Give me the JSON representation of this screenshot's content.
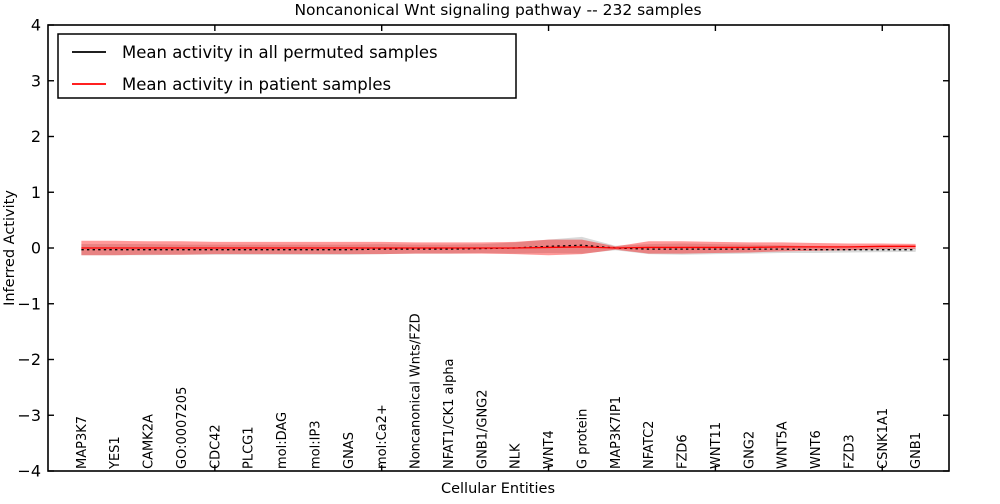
{
  "figure": {
    "title": "Noncanonical Wnt signaling pathway -- 232 samples",
    "xlabel": "Cellular Entities",
    "ylabel": "Inferred Activity"
  },
  "legend": {
    "position": "upper left",
    "items": [
      {
        "label": "Mean activity in all permuted samples",
        "color": "#000000"
      },
      {
        "label": "Mean activity in patient samples",
        "color": "#ff0000"
      }
    ]
  },
  "chart_data": {
    "type": "line",
    "title": "Noncanonical Wnt signaling pathway -- 232 samples",
    "xlabel": "Cellular Entities",
    "ylabel": "Inferred Activity",
    "ylim": [
      -4,
      4
    ],
    "xlim": [
      0,
      27
    ],
    "yticks": [
      4,
      3,
      2,
      1,
      0,
      -1,
      -2,
      -3,
      -4
    ],
    "ytick_labels": [
      "4",
      "3",
      "2",
      "1",
      "0",
      "−1",
      "−2",
      "−3",
      "−4"
    ],
    "default_xticks": [
      5,
      10,
      15,
      20,
      25
    ],
    "grid": false,
    "legend_position": "upper left",
    "categories": [
      "MAP3K7",
      "YES1",
      "CAMK2A",
      "GO:0007205",
      "CDC42",
      "PLCG1",
      "mol:DAG",
      "mol:IP3",
      "GNAS",
      "mol:Ca2+",
      "Noncanonical Wnts/FZD",
      "NFAT1/CK1 alpha",
      "GNB1/GNG2",
      "NLK",
      "WNT4",
      "G protein",
      "MAP3K7IP1",
      "NFATC2",
      "FZD6",
      "WNT11",
      "GNG2",
      "WNT5A",
      "WNT6",
      "FZD3",
      "CSNK1A1",
      "GNB1"
    ],
    "series": [
      {
        "name": "Mean activity in all permuted samples",
        "color": "#000000",
        "style": "dashed",
        "values": [
          -0.03,
          -0.03,
          -0.03,
          -0.03,
          -0.03,
          -0.03,
          -0.03,
          -0.03,
          -0.03,
          -0.02,
          -0.02,
          -0.02,
          -0.01,
          0.0,
          0.03,
          0.05,
          0.0,
          -0.02,
          -0.02,
          -0.02,
          -0.02,
          -0.02,
          -0.03,
          -0.03,
          -0.03,
          -0.03
        ],
        "band_halfwidth": [
          0.1,
          0.1,
          0.1,
          0.09,
          0.09,
          0.09,
          0.09,
          0.09,
          0.09,
          0.09,
          0.08,
          0.08,
          0.08,
          0.1,
          0.12,
          0.15,
          0.04,
          0.09,
          0.1,
          0.09,
          0.08,
          0.07,
          0.06,
          0.05,
          0.045,
          0.04
        ],
        "band_color": "#808080",
        "band_alpha": 0.3
      },
      {
        "name": "Mean activity in patient samples",
        "color": "#ff0000",
        "style": "solid",
        "values": [
          0.0,
          0.0,
          0.0,
          0.0,
          0.0,
          0.0,
          0.0,
          0.0,
          0.0,
          0.0,
          0.0,
          0.0,
          0.0,
          0.0,
          0.01,
          0.02,
          0.0,
          0.01,
          0.01,
          0.01,
          0.01,
          0.02,
          0.02,
          0.02,
          0.03,
          0.03
        ],
        "band_halfwidth": [
          0.13,
          0.13,
          0.12,
          0.12,
          0.11,
          0.11,
          0.11,
          0.11,
          0.11,
          0.11,
          0.1,
          0.1,
          0.1,
          0.11,
          0.14,
          0.13,
          0.03,
          0.11,
          0.11,
          0.1,
          0.09,
          0.08,
          0.07,
          0.06,
          0.05,
          0.045
        ],
        "band_color": "#ff0000",
        "band_alpha": 0.4
      }
    ]
  }
}
